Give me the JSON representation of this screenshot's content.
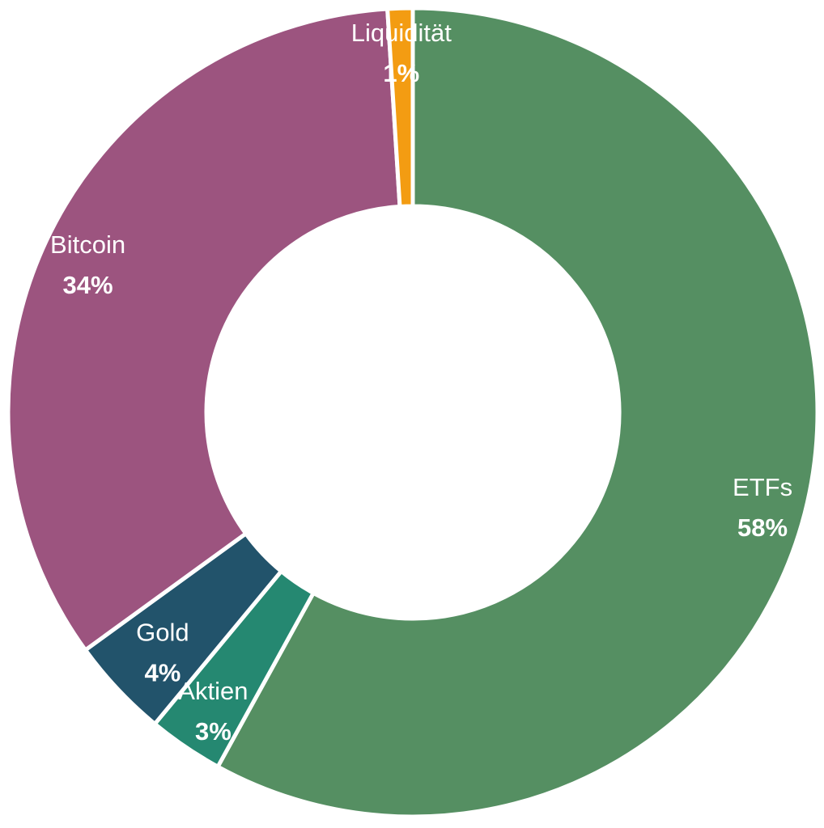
{
  "chart_data": {
    "type": "pie",
    "variant": "donut",
    "legend": "none",
    "slices": [
      {
        "label": "ETFs",
        "value": 58,
        "display": "58%",
        "color": "#558f62"
      },
      {
        "label": "Aktien",
        "value": 3,
        "display": "3%",
        "color": "#258871"
      },
      {
        "label": "Gold",
        "value": 4,
        "display": "4%",
        "color": "#22536b"
      },
      {
        "label": "Bitcoin",
        "value": 34,
        "display": "34%",
        "color": "#9c547f"
      },
      {
        "label": "Liquidität",
        "value": 1,
        "display": "1%",
        "color": "#f39c12"
      }
    ]
  }
}
